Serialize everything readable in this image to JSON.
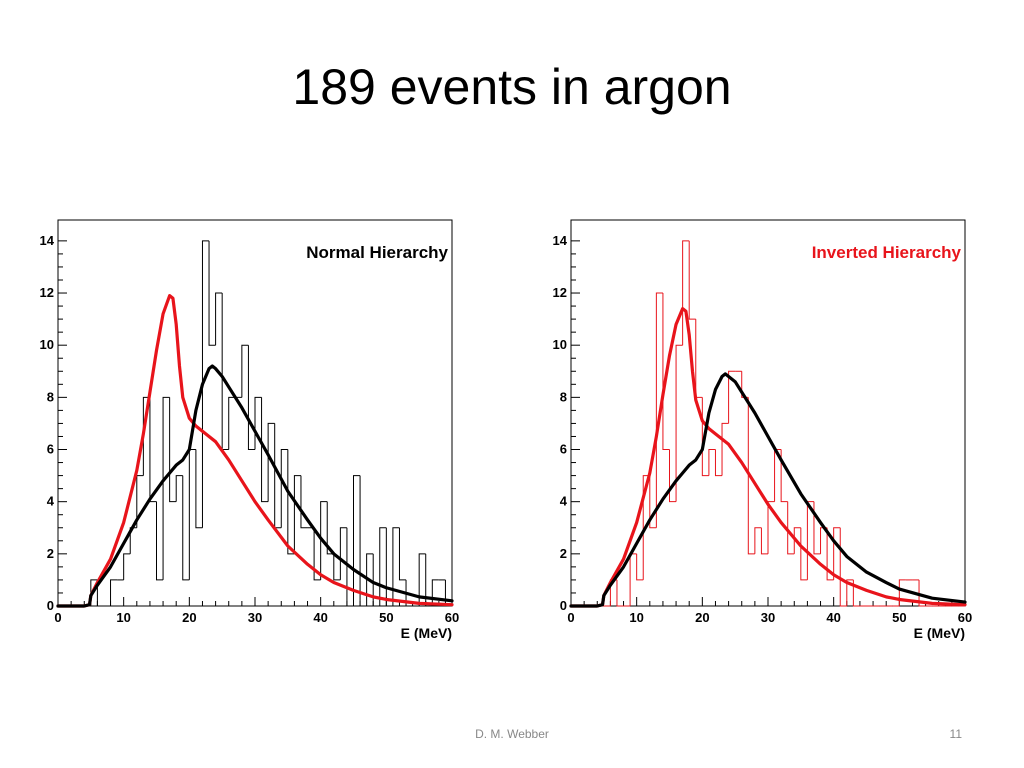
{
  "slide": {
    "title": "189 events in argon",
    "author": "D. M. Webber",
    "page_number": "11"
  },
  "colors": {
    "black": "#000000",
    "red": "#e8141b"
  },
  "chart_data": [
    {
      "type": "line",
      "panel_label": "Normal Hierarchy",
      "panel_label_color": "#000000",
      "xlabel": "E (MeV)",
      "ylabel": "",
      "xlim": [
        0,
        60
      ],
      "ylim": [
        0,
        14.8
      ],
      "x_ticks": [
        "0",
        "10",
        "20",
        "30",
        "40",
        "50",
        "60"
      ],
      "y_ticks": [
        "0",
        "2",
        "4",
        "6",
        "8",
        "10",
        "12",
        "14"
      ],
      "histogram": {
        "color": "#000000",
        "bin_edges": [
          0,
          1,
          2,
          3,
          4,
          5,
          6,
          7,
          8,
          9,
          10,
          11,
          12,
          13,
          14,
          15,
          16,
          17,
          18,
          19,
          20,
          21,
          22,
          23,
          24,
          25,
          26,
          27,
          28,
          29,
          30,
          31,
          32,
          33,
          34,
          35,
          36,
          37,
          38,
          39,
          40,
          41,
          42,
          43,
          44,
          45,
          46,
          47,
          48,
          49,
          50,
          51,
          52,
          53,
          54,
          55,
          56,
          57,
          58,
          59,
          60
        ],
        "counts": [
          0,
          0,
          0,
          0,
          0,
          1,
          0,
          0,
          1,
          1,
          2,
          3,
          5,
          8,
          4,
          1,
          8,
          4,
          5,
          1,
          6,
          3,
          14,
          10,
          12,
          6,
          8,
          8,
          10,
          6,
          8,
          4,
          7,
          3,
          6,
          2,
          5,
          3,
          3,
          1,
          4,
          2,
          1,
          3,
          0,
          5,
          0,
          2,
          0,
          3,
          0,
          3,
          1,
          0,
          0,
          2,
          0,
          1,
          1,
          0
        ]
      },
      "series": [
        {
          "color": "#e8141b",
          "x": [
            0,
            2,
            4,
            4.8,
            5,
            6,
            8,
            10,
            12,
            13,
            14,
            15,
            16,
            17,
            17.5,
            18,
            18.5,
            19,
            20,
            21,
            22,
            24,
            26,
            28,
            30,
            32,
            35,
            38,
            40,
            42,
            45,
            48,
            50,
            55,
            60
          ],
          "y": [
            0,
            0,
            0,
            0.05,
            0.4,
            0.9,
            1.8,
            3.2,
            5.2,
            6.6,
            8.2,
            9.8,
            11.2,
            11.9,
            11.8,
            10.8,
            9.2,
            8.0,
            7.2,
            6.9,
            6.7,
            6.3,
            5.6,
            4.8,
            4.0,
            3.3,
            2.3,
            1.6,
            1.2,
            0.9,
            0.6,
            0.35,
            0.25,
            0.1,
            0.05
          ]
        },
        {
          "color": "#000000",
          "x": [
            0,
            2,
            4,
            4.8,
            5,
            6,
            8,
            10,
            12,
            14,
            16,
            17,
            18,
            19,
            20,
            21,
            22,
            23,
            23.5,
            24,
            25,
            26,
            28,
            30,
            32,
            35,
            38,
            40,
            42,
            45,
            48,
            50,
            55,
            60
          ],
          "y": [
            0,
            0,
            0,
            0.05,
            0.4,
            0.8,
            1.5,
            2.4,
            3.3,
            4.1,
            4.8,
            5.1,
            5.4,
            5.6,
            6.0,
            7.5,
            8.5,
            9.1,
            9.2,
            9.1,
            8.8,
            8.4,
            7.6,
            6.7,
            5.8,
            4.4,
            3.3,
            2.6,
            2.0,
            1.4,
            0.9,
            0.7,
            0.35,
            0.2
          ]
        }
      ]
    },
    {
      "type": "line",
      "panel_label": "Inverted Hierarchy",
      "panel_label_color": "#e8141b",
      "xlabel": "E (MeV)",
      "ylabel": "",
      "xlim": [
        0,
        60
      ],
      "ylim": [
        0,
        14.8
      ],
      "x_ticks": [
        "0",
        "10",
        "20",
        "30",
        "40",
        "50",
        "60"
      ],
      "y_ticks": [
        "0",
        "2",
        "4",
        "6",
        "8",
        "10",
        "12",
        "14"
      ],
      "histogram": {
        "color": "#e8141b",
        "bin_edges": [
          0,
          1,
          2,
          3,
          4,
          5,
          6,
          7,
          8,
          9,
          10,
          11,
          12,
          13,
          14,
          15,
          16,
          17,
          18,
          19,
          20,
          21,
          22,
          23,
          24,
          25,
          26,
          27,
          28,
          29,
          30,
          31,
          32,
          33,
          34,
          35,
          36,
          37,
          38,
          39,
          40,
          41,
          42,
          43,
          44,
          45,
          46,
          47,
          48,
          49,
          50,
          51,
          52,
          53,
          54,
          55,
          56,
          57,
          58,
          59,
          60
        ],
        "counts": [
          0,
          0,
          0,
          0,
          0,
          0,
          1,
          0,
          0,
          2,
          1,
          5,
          3,
          12,
          6,
          4,
          10,
          14,
          11,
          8,
          5,
          6,
          5,
          7,
          9,
          9,
          8,
          2,
          3,
          2,
          4,
          6,
          4,
          2,
          3,
          1,
          4,
          2,
          3,
          1,
          3,
          0,
          1,
          0,
          0,
          0,
          0,
          0,
          0,
          0,
          1,
          1,
          1,
          0,
          0,
          0,
          0,
          0,
          0,
          0
        ]
      },
      "series": [
        {
          "color": "#e8141b",
          "x": [
            0,
            2,
            4,
            4.8,
            5,
            6,
            8,
            10,
            12,
            13,
            14,
            15,
            16,
            17,
            17.5,
            18,
            18.5,
            19,
            20,
            21,
            22,
            24,
            26,
            28,
            30,
            32,
            35,
            38,
            40,
            42,
            45,
            48,
            50,
            55,
            60
          ],
          "y": [
            0,
            0,
            0,
            0.05,
            0.4,
            0.9,
            1.8,
            3.2,
            5.1,
            6.5,
            8.1,
            9.6,
            10.8,
            11.4,
            11.3,
            10.4,
            9.0,
            7.9,
            7.1,
            6.8,
            6.6,
            6.2,
            5.5,
            4.7,
            3.9,
            3.2,
            2.3,
            1.6,
            1.2,
            0.9,
            0.6,
            0.35,
            0.25,
            0.1,
            0.05
          ]
        },
        {
          "color": "#000000",
          "x": [
            0,
            2,
            4,
            4.8,
            5,
            6,
            8,
            10,
            12,
            14,
            16,
            17,
            18,
            19,
            20,
            21,
            22,
            23,
            23.5,
            24,
            25,
            26,
            28,
            30,
            32,
            35,
            38,
            40,
            42,
            45,
            48,
            50,
            55,
            60
          ],
          "y": [
            0,
            0,
            0,
            0.05,
            0.4,
            0.8,
            1.5,
            2.4,
            3.3,
            4.1,
            4.8,
            5.1,
            5.4,
            5.6,
            6.0,
            7.4,
            8.3,
            8.8,
            8.9,
            8.8,
            8.6,
            8.2,
            7.4,
            6.5,
            5.6,
            4.3,
            3.2,
            2.5,
            1.9,
            1.3,
            0.9,
            0.65,
            0.3,
            0.15
          ]
        }
      ]
    }
  ]
}
